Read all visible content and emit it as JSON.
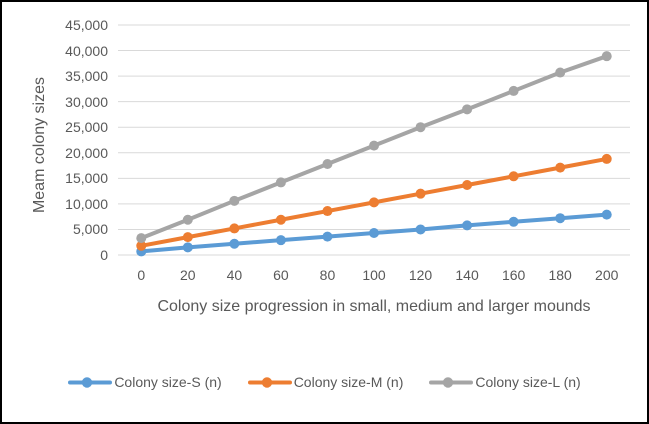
{
  "window": {
    "background": "#ffffff",
    "border_color": "#000000",
    "text_color": "#595959"
  },
  "chart_data": {
    "type": "line",
    "title": "",
    "xlabel": "Colony size progression in small, medium and larger mounds",
    "ylabel": "Meam colony sizes",
    "x": [
      0,
      20,
      40,
      60,
      80,
      100,
      120,
      140,
      160,
      180,
      200
    ],
    "xtick_labels": [
      "0",
      "20",
      "40",
      "60",
      "80",
      "100",
      "120",
      "140",
      "160",
      "180",
      "200"
    ],
    "ytick_labels": [
      "0",
      "5,000",
      "10,000",
      "15,000",
      "20,000",
      "25,000",
      "30,000",
      "35,000",
      "40,000",
      "45,000"
    ],
    "ylim": [
      0,
      45000
    ],
    "ytick_step": 5000,
    "grid": true,
    "gridline_color": "#d9d9d9",
    "axis_line_color": "#d9d9d9",
    "legend_position": "bottom",
    "series": [
      {
        "name": "Colony size-S (n)",
        "color": "#5b9bd5",
        "values": [
          700,
          1500,
          2200,
          2900,
          3600,
          4300,
          5000,
          5800,
          6500,
          7200,
          7900
        ]
      },
      {
        "name": "Colony size-M (n)",
        "color": "#ed7d31",
        "values": [
          1800,
          3500,
          5200,
          6900,
          8600,
          10300,
          12000,
          13700,
          15400,
          17100,
          18800
        ]
      },
      {
        "name": "Colony size-L (n)",
        "color": "#a5a5a5",
        "values": [
          3300,
          6900,
          10600,
          14200,
          17800,
          21400,
          25000,
          28500,
          32100,
          35700,
          38900
        ]
      }
    ]
  }
}
